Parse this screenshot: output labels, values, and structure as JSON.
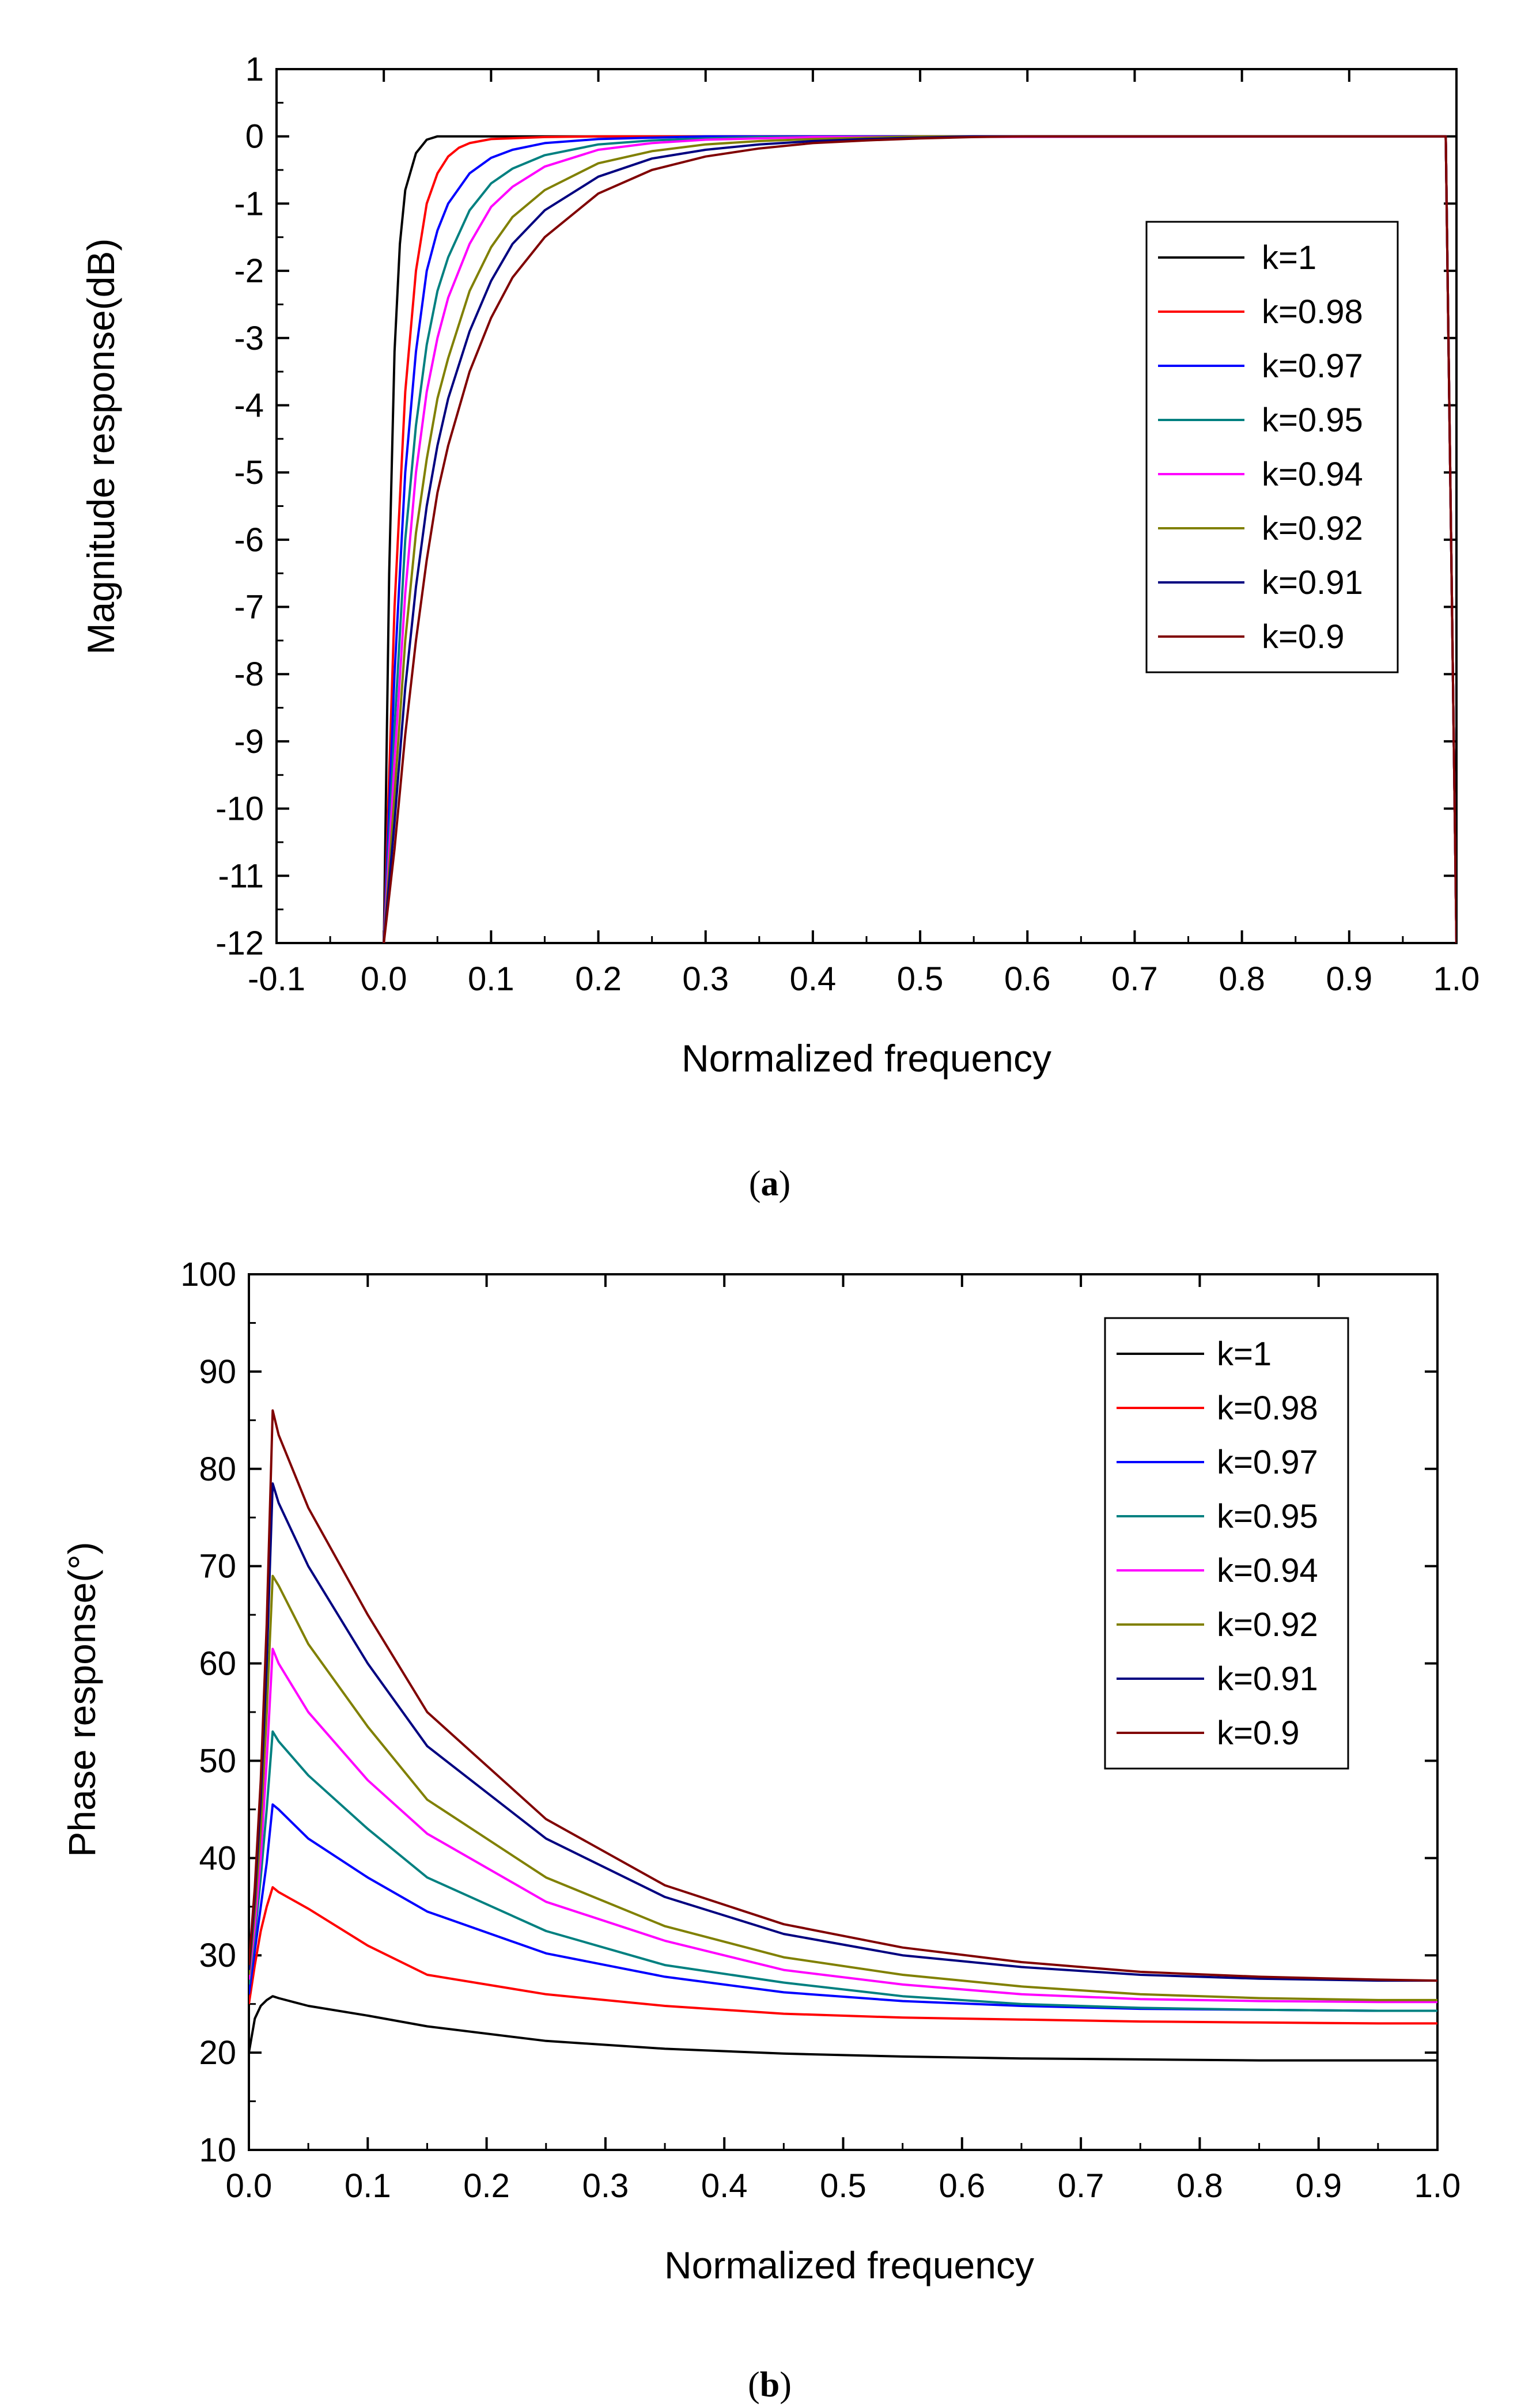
{
  "chart_data": [
    {
      "type": "line",
      "panel": "a",
      "caption": "(a)",
      "caption_open": "(",
      "caption_letter": "a",
      "caption_close": ")",
      "xlabel": "Normalized frequency",
      "ylabel": "Magnitude response(dB)",
      "xlim": [
        -0.1,
        1.0
      ],
      "ylim": [
        -12,
        1
      ],
      "xticks": [
        -0.1,
        0.0,
        0.1,
        0.2,
        0.3,
        0.4,
        0.5,
        0.6,
        0.7,
        0.8,
        0.9,
        1.0
      ],
      "xtick_labels": [
        "-0.1",
        "0.0",
        "0.1",
        "0.2",
        "0.3",
        "0.4",
        "0.5",
        "0.6",
        "0.7",
        "0.8",
        "0.9",
        "1.0"
      ],
      "yticks": [
        1,
        0,
        -1,
        -2,
        -3,
        -4,
        -5,
        -6,
        -7,
        -8,
        -9,
        -10,
        -11,
        -12
      ],
      "ytick_labels": [
        "1",
        "0",
        "-1",
        "-2",
        "-3",
        "-4",
        "-5",
        "-6",
        "-7",
        "-8",
        "-9",
        "-10",
        "-11",
        "-12"
      ],
      "legend_position": "upper-right",
      "series": [
        {
          "name": "k=1",
          "color": "#000000",
          "x": [
            0.0,
            0.005,
            0.01,
            0.015,
            0.02,
            0.03,
            0.04,
            0.05,
            0.06,
            0.1,
            0.99,
            0.995,
            1.0
          ],
          "y": [
            -12,
            -6.5,
            -3.2,
            -1.6,
            -0.8,
            -0.25,
            -0.05,
            0,
            0,
            0,
            0,
            -6,
            -12
          ]
        },
        {
          "name": "k=0.98",
          "color": "#ff0000",
          "x": [
            0.0,
            0.01,
            0.02,
            0.03,
            0.04,
            0.05,
            0.06,
            0.07,
            0.08,
            0.1,
            0.15,
            0.2,
            0.99,
            0.995,
            1.0
          ],
          "y": [
            -12,
            -7.0,
            -3.8,
            -2.0,
            -1.0,
            -0.55,
            -0.3,
            -0.17,
            -0.1,
            -0.04,
            -0.01,
            0,
            0,
            -6,
            -12
          ]
        },
        {
          "name": "k=0.97",
          "color": "#0000ff",
          "x": [
            0.0,
            0.01,
            0.02,
            0.03,
            0.04,
            0.05,
            0.06,
            0.08,
            0.1,
            0.12,
            0.15,
            0.2,
            0.25,
            0.3,
            0.99,
            0.995,
            1.0
          ],
          "y": [
            -12,
            -8.0,
            -5.0,
            -3.2,
            -2.0,
            -1.4,
            -1.0,
            -0.55,
            -0.32,
            -0.2,
            -0.1,
            -0.04,
            -0.02,
            0,
            0,
            -6,
            -12
          ]
        },
        {
          "name": "k=0.95",
          "color": "#008080",
          "x": [
            0.0,
            0.01,
            0.02,
            0.03,
            0.04,
            0.05,
            0.06,
            0.08,
            0.1,
            0.12,
            0.15,
            0.2,
            0.25,
            0.3,
            0.35,
            0.99,
            0.995,
            1.0
          ],
          "y": [
            -12,
            -8.8,
            -6.0,
            -4.3,
            -3.1,
            -2.3,
            -1.8,
            -1.1,
            -0.7,
            -0.48,
            -0.28,
            -0.12,
            -0.06,
            -0.03,
            -0.01,
            0,
            -6,
            -12
          ]
        },
        {
          "name": "k=0.94",
          "color": "#ff00ff",
          "x": [
            0.0,
            0.01,
            0.02,
            0.03,
            0.04,
            0.05,
            0.06,
            0.08,
            0.1,
            0.12,
            0.15,
            0.2,
            0.25,
            0.3,
            0.35,
            0.4,
            0.99,
            0.995,
            1.0
          ],
          "y": [
            -12,
            -9.3,
            -6.8,
            -5.0,
            -3.8,
            -3.0,
            -2.4,
            -1.6,
            -1.05,
            -0.75,
            -0.45,
            -0.2,
            -0.1,
            -0.05,
            -0.03,
            -0.01,
            0,
            -6,
            -12
          ]
        },
        {
          "name": "k=0.92",
          "color": "#808000",
          "x": [
            0.0,
            0.01,
            0.02,
            0.03,
            0.04,
            0.05,
            0.06,
            0.08,
            0.1,
            0.12,
            0.15,
            0.2,
            0.25,
            0.3,
            0.35,
            0.4,
            0.45,
            0.5,
            0.99,
            0.995,
            1.0
          ],
          "y": [
            -12,
            -9.8,
            -7.5,
            -5.9,
            -4.8,
            -3.9,
            -3.3,
            -2.3,
            -1.65,
            -1.2,
            -0.8,
            -0.4,
            -0.22,
            -0.12,
            -0.07,
            -0.04,
            -0.02,
            0,
            0,
            -6,
            -12
          ]
        },
        {
          "name": "k=0.91",
          "color": "#000080",
          "x": [
            0.0,
            0.01,
            0.02,
            0.03,
            0.04,
            0.05,
            0.06,
            0.08,
            0.1,
            0.12,
            0.15,
            0.2,
            0.25,
            0.3,
            0.35,
            0.4,
            0.45,
            0.5,
            0.55,
            0.99,
            0.995,
            1.0
          ],
          "y": [
            -12,
            -10.2,
            -8.2,
            -6.7,
            -5.5,
            -4.6,
            -3.9,
            -2.9,
            -2.15,
            -1.6,
            -1.1,
            -0.6,
            -0.33,
            -0.2,
            -0.12,
            -0.07,
            -0.04,
            -0.02,
            0,
            0,
            -6,
            -12
          ]
        },
        {
          "name": "k=0.9",
          "color": "#800000",
          "x": [
            0.0,
            0.01,
            0.02,
            0.03,
            0.04,
            0.05,
            0.06,
            0.08,
            0.1,
            0.12,
            0.15,
            0.2,
            0.25,
            0.3,
            0.35,
            0.4,
            0.45,
            0.5,
            0.55,
            0.6,
            0.99,
            0.995,
            1.0
          ],
          "y": [
            -12,
            -10.6,
            -8.9,
            -7.5,
            -6.3,
            -5.3,
            -4.6,
            -3.5,
            -2.7,
            -2.1,
            -1.5,
            -0.85,
            -0.5,
            -0.3,
            -0.18,
            -0.1,
            -0.06,
            -0.03,
            -0.01,
            0,
            0,
            -6,
            -12
          ]
        }
      ]
    },
    {
      "type": "line",
      "panel": "b",
      "caption": "(b)",
      "caption_open": "(",
      "caption_letter": "b",
      "caption_close": ")",
      "xlabel": "Normalized frequency",
      "ylabel": "Phase response(°)",
      "xlim": [
        0.0,
        1.0
      ],
      "ylim": [
        10,
        100
      ],
      "xticks": [
        0.0,
        0.1,
        0.2,
        0.3,
        0.4,
        0.5,
        0.6,
        0.7,
        0.8,
        0.9,
        1.0
      ],
      "xtick_labels": [
        "0.0",
        "0.1",
        "0.2",
        "0.3",
        "0.4",
        "0.5",
        "0.6",
        "0.7",
        "0.8",
        "0.9",
        "1.0"
      ],
      "yticks": [
        100,
        90,
        80,
        70,
        60,
        50,
        40,
        30,
        20,
        10
      ],
      "ytick_labels": [
        "100",
        "90",
        "80",
        "70",
        "60",
        "50",
        "40",
        "30",
        "20",
        "10"
      ],
      "legend_position": "upper-right",
      "series": [
        {
          "name": "k=1",
          "color": "#000000",
          "x": [
            0.0,
            0.005,
            0.01,
            0.015,
            0.02,
            0.025,
            0.05,
            0.1,
            0.15,
            0.25,
            0.35,
            0.45,
            0.55,
            0.65,
            0.75,
            0.85,
            0.95,
            1.0
          ],
          "y": [
            20,
            23.5,
            24.8,
            25.4,
            25.8,
            25.6,
            24.8,
            23.8,
            22.7,
            21.2,
            20.4,
            19.9,
            19.6,
            19.4,
            19.3,
            19.2,
            19.2,
            19.2
          ]
        },
        {
          "name": "k=0.98",
          "color": "#ff0000",
          "x": [
            0.0,
            0.005,
            0.01,
            0.015,
            0.02,
            0.025,
            0.05,
            0.1,
            0.15,
            0.25,
            0.35,
            0.45,
            0.55,
            0.65,
            0.75,
            0.85,
            0.95,
            1.0
          ],
          "y": [
            25,
            29.0,
            32.5,
            35.0,
            37.0,
            36.5,
            34.8,
            31.0,
            28.0,
            26.0,
            24.8,
            24.0,
            23.6,
            23.4,
            23.2,
            23.1,
            23.0,
            23.0
          ]
        },
        {
          "name": "k=0.97",
          "color": "#0000ff",
          "x": [
            0.0,
            0.005,
            0.01,
            0.015,
            0.02,
            0.025,
            0.05,
            0.1,
            0.15,
            0.25,
            0.35,
            0.45,
            0.55,
            0.65,
            0.75,
            0.85,
            0.95,
            1.0
          ],
          "y": [
            26,
            30.5,
            35.0,
            39.5,
            45.5,
            45.0,
            42.0,
            38.0,
            34.5,
            30.2,
            27.8,
            26.2,
            25.3,
            24.8,
            24.5,
            24.4,
            24.3,
            24.3
          ]
        },
        {
          "name": "k=0.95",
          "color": "#008080",
          "x": [
            0.0,
            0.005,
            0.01,
            0.015,
            0.02,
            0.025,
            0.05,
            0.1,
            0.15,
            0.25,
            0.35,
            0.45,
            0.55,
            0.65,
            0.75,
            0.85,
            0.95,
            1.0
          ],
          "y": [
            27,
            32.0,
            38.0,
            45.0,
            53.0,
            52.0,
            48.5,
            43.0,
            38.0,
            32.5,
            29.0,
            27.2,
            25.8,
            25.0,
            24.6,
            24.4,
            24.3,
            24.3
          ]
        },
        {
          "name": "k=0.94",
          "color": "#ff00ff",
          "x": [
            0.0,
            0.005,
            0.01,
            0.015,
            0.02,
            0.025,
            0.05,
            0.1,
            0.15,
            0.25,
            0.35,
            0.45,
            0.55,
            0.65,
            0.75,
            0.85,
            0.95,
            1.0
          ],
          "y": [
            27.5,
            33.0,
            40.0,
            50.0,
            61.5,
            60.0,
            55.0,
            48.0,
            42.5,
            35.5,
            31.5,
            28.5,
            27.0,
            26.0,
            25.5,
            25.3,
            25.2,
            25.2
          ]
        },
        {
          "name": "k=0.92",
          "color": "#808000",
          "x": [
            0.0,
            0.005,
            0.01,
            0.015,
            0.02,
            0.025,
            0.05,
            0.1,
            0.15,
            0.25,
            0.35,
            0.45,
            0.55,
            0.65,
            0.75,
            0.85,
            0.95,
            1.0
          ],
          "y": [
            28,
            34.5,
            43.0,
            55.0,
            69.0,
            68.0,
            62.0,
            53.5,
            46.0,
            38.0,
            33.0,
            29.8,
            28.0,
            26.8,
            26.0,
            25.6,
            25.4,
            25.4
          ]
        },
        {
          "name": "k=0.91",
          "color": "#000080",
          "x": [
            0.0,
            0.005,
            0.01,
            0.015,
            0.02,
            0.025,
            0.05,
            0.1,
            0.15,
            0.25,
            0.35,
            0.45,
            0.55,
            0.65,
            0.75,
            0.85,
            0.95,
            1.0
          ],
          "y": [
            28.5,
            36.0,
            46.0,
            60.0,
            78.5,
            76.5,
            70.0,
            60.0,
            51.5,
            42.0,
            36.0,
            32.2,
            30.0,
            28.8,
            28.0,
            27.6,
            27.4,
            27.4
          ]
        },
        {
          "name": "k=0.9",
          "color": "#800000",
          "x": [
            0.0,
            0.005,
            0.01,
            0.015,
            0.02,
            0.025,
            0.05,
            0.1,
            0.15,
            0.25,
            0.35,
            0.45,
            0.55,
            0.65,
            0.75,
            0.85,
            0.95,
            1.0
          ],
          "y": [
            29,
            37.0,
            48.0,
            64.0,
            86.0,
            83.5,
            76.0,
            65.0,
            55.0,
            44.0,
            37.2,
            33.2,
            30.8,
            29.3,
            28.3,
            27.8,
            27.5,
            27.4
          ]
        }
      ]
    }
  ]
}
